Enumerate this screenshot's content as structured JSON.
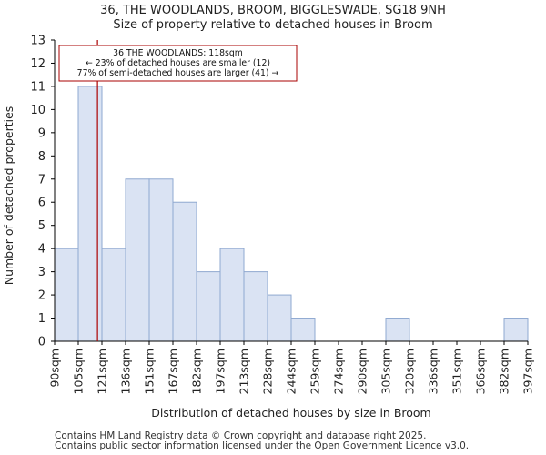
{
  "chart_data": {
    "type": "bar",
    "title": "36, THE WOODLANDS, BROOM, BIGGLESWADE, SG18 9NH",
    "subtitle": "Size of property relative to detached houses in Broom",
    "xlabel": "Distribution of detached houses by size in Broom",
    "ylabel": "Number of detached properties",
    "bin_edges": [
      90,
      105,
      121,
      136,
      151,
      167,
      182,
      197,
      213,
      228,
      244,
      259,
      274,
      290,
      305,
      320,
      336,
      351,
      366,
      382,
      397
    ],
    "x_tick_labels": [
      "90sqm",
      "105sqm",
      "121sqm",
      "136sqm",
      "151sqm",
      "167sqm",
      "182sqm",
      "197sqm",
      "213sqm",
      "228sqm",
      "244sqm",
      "259sqm",
      "274sqm",
      "290sqm",
      "305sqm",
      "320sqm",
      "336sqm",
      "351sqm",
      "366sqm",
      "382sqm",
      "397sqm"
    ],
    "values": [
      4,
      11,
      4,
      7,
      7,
      6,
      3,
      4,
      3,
      2,
      1,
      0,
      0,
      0,
      1,
      0,
      0,
      0,
      0,
      1
    ],
    "ylim": [
      0,
      13
    ],
    "y_ticks": [
      0,
      1,
      2,
      3,
      4,
      5,
      6,
      7,
      8,
      9,
      10,
      11,
      12,
      13
    ],
    "grid": false,
    "marker": {
      "value": 118,
      "label_lines": [
        "36 THE WOODLANDS: 118sqm",
        "← 23% of detached houses are smaller (12)",
        "77% of semi-detached houses are larger (41) →"
      ]
    },
    "colors": {
      "bar_fill": "#dae3f3",
      "bar_stroke": "#8fa8d0",
      "marker": "#aa0000",
      "annotation_border": "#aa0000",
      "axis": "#000000"
    }
  },
  "footer": {
    "line1": "Contains HM Land Registry data © Crown copyright and database right 2025.",
    "line2": "Contains public sector information licensed under the Open Government Licence v3.0."
  }
}
